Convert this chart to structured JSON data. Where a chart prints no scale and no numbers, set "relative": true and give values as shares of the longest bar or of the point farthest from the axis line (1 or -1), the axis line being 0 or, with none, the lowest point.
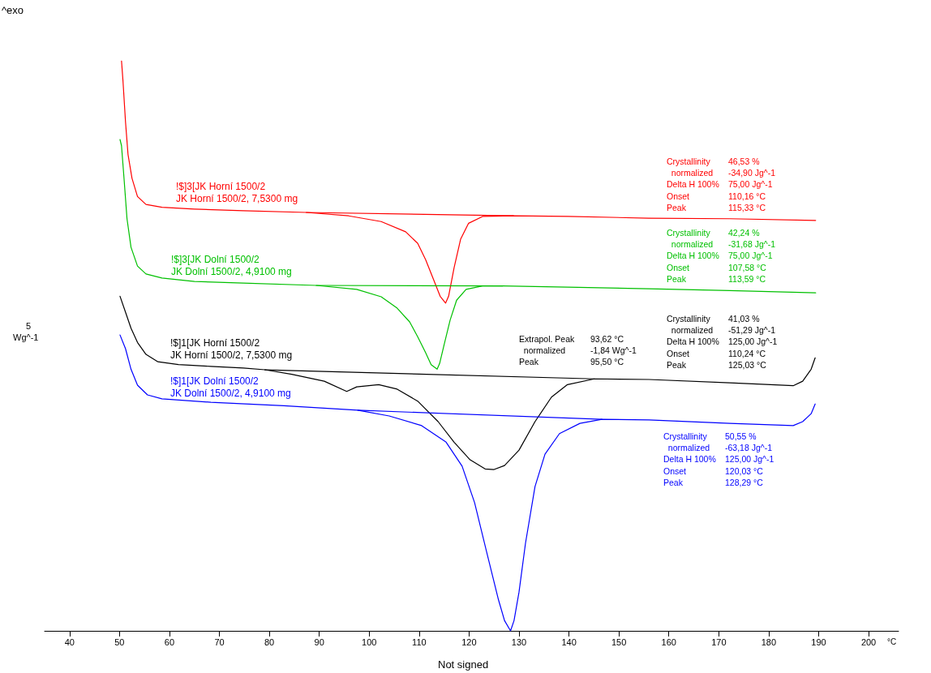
{
  "chart_data": {
    "type": "line",
    "relative": true,
    "xlabel": "°C",
    "ylabel": "5\nWg^-1",
    "xlim": [
      35,
      206
    ],
    "xticks": [
      40,
      50,
      60,
      70,
      80,
      90,
      100,
      110,
      120,
      130,
      140,
      150,
      160,
      170,
      180,
      190,
      200
    ],
    "tick_labels": "x",
    "legend": false,
    "grid": false,
    "line_style": "solid",
    "series": [
      {
        "name": "!$]3[JK Horní 1500/2\nJK Horní 1500/2, 7,5300 mg",
        "color": "#ff0000",
        "x": [
          50.4,
          50.7,
          51.2,
          51.7,
          52.5,
          53.6,
          55.3,
          58.5,
          65.0,
          74.8,
          87.4,
          95.9,
          102.4,
          107.3,
          109.7,
          111.3,
          112.9,
          114.2,
          115.3,
          115.9,
          117.0,
          118.3,
          119.9,
          122.7,
          128.9,
          139.7,
          156.0,
          172.2,
          189.4
        ],
        "values": [
          1.0,
          0.964,
          0.893,
          0.836,
          0.794,
          0.762,
          0.748,
          0.743,
          0.74,
          0.737,
          0.734,
          0.728,
          0.718,
          0.7,
          0.68,
          0.651,
          0.616,
          0.587,
          0.575,
          0.587,
          0.637,
          0.687,
          0.715,
          0.727,
          0.728,
          0.727,
          0.724,
          0.723,
          0.72
        ]
      },
      {
        "name": "!$]3[JK Dolní 1500/2\nJK Dolní 1500/2, 4,9100 mg",
        "color": "#00c000",
        "x": [
          50.1,
          50.4,
          50.9,
          51.5,
          52.3,
          53.6,
          55.3,
          58.5,
          65.0,
          74.8,
          89.4,
          97.5,
          102.4,
          105.6,
          108.1,
          109.7,
          111.3,
          112.4,
          113.6,
          114.1,
          115.0,
          116.2,
          117.5,
          119.4,
          122.7,
          126.7,
          139.7,
          156.0,
          172.2,
          189.4
        ],
        "values": [
          0.862,
          0.851,
          0.794,
          0.723,
          0.673,
          0.64,
          0.626,
          0.619,
          0.613,
          0.61,
          0.606,
          0.599,
          0.586,
          0.566,
          0.542,
          0.516,
          0.488,
          0.467,
          0.459,
          0.469,
          0.502,
          0.545,
          0.58,
          0.599,
          0.605,
          0.605,
          0.603,
          0.6,
          0.597,
          0.593
        ]
      },
      {
        "name": "!$]1[JK Horní 1500/2\nJK Horní 1500/2, 7,5300 mg",
        "color": "#000000",
        "x": [
          50.1,
          51.2,
          52.3,
          53.6,
          55.3,
          57.7,
          61.8,
          68.3,
          74.8,
          79.1,
          84.5,
          91.0,
          95.5,
          97.5,
          101.9,
          105.6,
          109.7,
          113.8,
          117.0,
          120.2,
          123.2,
          125.0,
          127.1,
          130.0,
          133.2,
          136.5,
          139.7,
          145.1,
          156.0,
          172.2,
          184.9,
          186.8,
          188.5,
          189.3
        ],
        "values": [
          0.587,
          0.559,
          0.531,
          0.506,
          0.485,
          0.472,
          0.467,
          0.464,
          0.461,
          0.458,
          0.45,
          0.438,
          0.42,
          0.428,
          0.432,
          0.424,
          0.403,
          0.367,
          0.331,
          0.3,
          0.284,
          0.283,
          0.29,
          0.317,
          0.367,
          0.41,
          0.432,
          0.442,
          0.441,
          0.435,
          0.43,
          0.438,
          0.459,
          0.479
        ]
      },
      {
        "name": "!$]1[JK Dolní 1500/2\nJK Dolní 1500/2, 4,9100 mg",
        "color": "#0000ff",
        "x": [
          50.1,
          51.2,
          52.3,
          53.6,
          55.6,
          58.5,
          68.3,
          82.9,
          97.7,
          104.0,
          110.5,
          115.4,
          118.6,
          121.1,
          123.5,
          125.9,
          127.1,
          128.3,
          129.0,
          130.0,
          131.3,
          133.2,
          135.2,
          138.1,
          142.2,
          146.6,
          156.0,
          172.2,
          184.9,
          186.8,
          188.5,
          189.3
        ],
        "values": [
          0.519,
          0.495,
          0.459,
          0.431,
          0.414,
          0.407,
          0.401,
          0.395,
          0.387,
          0.377,
          0.36,
          0.331,
          0.289,
          0.225,
          0.139,
          0.054,
          0.018,
          0.0,
          0.018,
          0.068,
          0.154,
          0.253,
          0.31,
          0.346,
          0.364,
          0.371,
          0.37,
          0.364,
          0.36,
          0.367,
          0.381,
          0.398
        ]
      },
      {
        "color": "#ff0000",
        "x": [
          87.4,
          128.9
        ],
        "values": [
          0.734,
          0.728
        ]
      },
      {
        "color": "#00c000",
        "x": [
          89.4,
          126.7
        ],
        "values": [
          0.606,
          0.605
        ]
      },
      {
        "color": "#000000",
        "x": [
          79.1,
          145.1
        ],
        "values": [
          0.458,
          0.442
        ]
      },
      {
        "color": "#0000ff",
        "x": [
          97.7,
          146.6
        ],
        "values": [
          0.387,
          0.371
        ]
      }
    ],
    "annotations": [
      "^exo",
      "Crystallinity\t46,53 %\n  normalized\t-34,90 Jg^-1\nDelta H 100%\t75,00 Jg^-1\nOnset\t110,16 °C\nPeak\t115,33 °C",
      "Crystallinity\t42,24 %\n  normalized\t-31,68 Jg^-1\nDelta H 100%\t75,00 Jg^-1\nOnset\t107,58 °C\nPeak\t113,59 °C",
      "Extrapol. Peak\t93,62 °C\n  normalized\t-1,84 Wg^-1\nPeak\t95,50 °C",
      "Crystallinity\t41,03 %\n  normalized\t-51,29 Jg^-1\nDelta H 100%\t125,00 Jg^-1\nOnset\t110,24 °C\nPeak\t125,03 °C",
      "Crystallinity\t50,55 %\n  normalized\t-63,18 Jg^-1\nDelta H 100%\t125,00 Jg^-1\nOnset\t120,03 °C\nPeak\t128,29 °C",
      "Not signed"
    ]
  }
}
